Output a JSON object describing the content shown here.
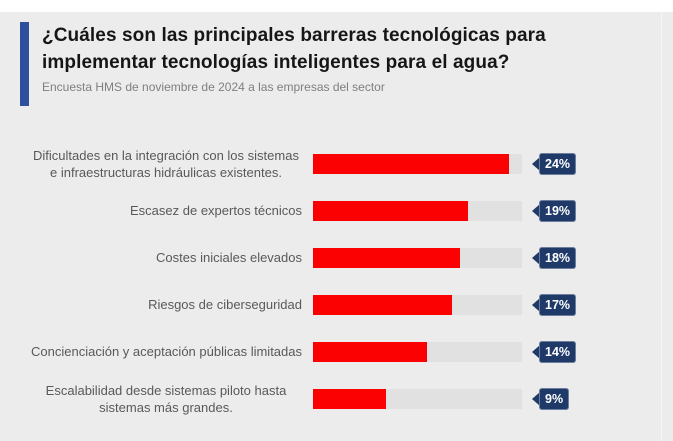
{
  "header": {
    "title": "¿Cuáles son las principales barreras tecnológicas para implementar tecnologías inteligentes para el agua?",
    "subtitle": "Encuesta HMS de noviembre de 2024 a las empresas del sector"
  },
  "chart_data": {
    "type": "bar",
    "orientation": "horizontal",
    "title": "¿Cuáles son las principales barreras tecnológicas para implementar tecnologías inteligentes para el agua?",
    "subtitle": "Encuesta HMS de noviembre de 2024 a las empresas del sector",
    "categories": [
      "Dificultades en la integración con los sistemas e infraestructuras hidráulicas existentes.",
      "Escasez de expertos técnicos",
      "Costes iniciales elevados",
      "Riesgos de ciberseguridad",
      "Concienciación y aceptación públicas limitadas",
      "Escalabilidad desde sistemas piloto hasta sistemas más grandes."
    ],
    "values": [
      24,
      19,
      18,
      17,
      14,
      9
    ],
    "value_labels": [
      "24%",
      "19%",
      "18%",
      "17%",
      "14%",
      "9%"
    ],
    "unit": "%",
    "xlim": [
      0,
      25.6
    ],
    "grid": false,
    "legend": false,
    "colors": {
      "bar_fill": "#fb0101",
      "bar_track": "#e1e1e1",
      "value_tag": "#1f3a68",
      "value_tag_text": "#ffffff",
      "accent_bar": "#2e4f9e",
      "title_text": "#161616",
      "subtitle_text": "#7f7f7f",
      "category_text": "#595959",
      "background": "#ececec"
    }
  }
}
